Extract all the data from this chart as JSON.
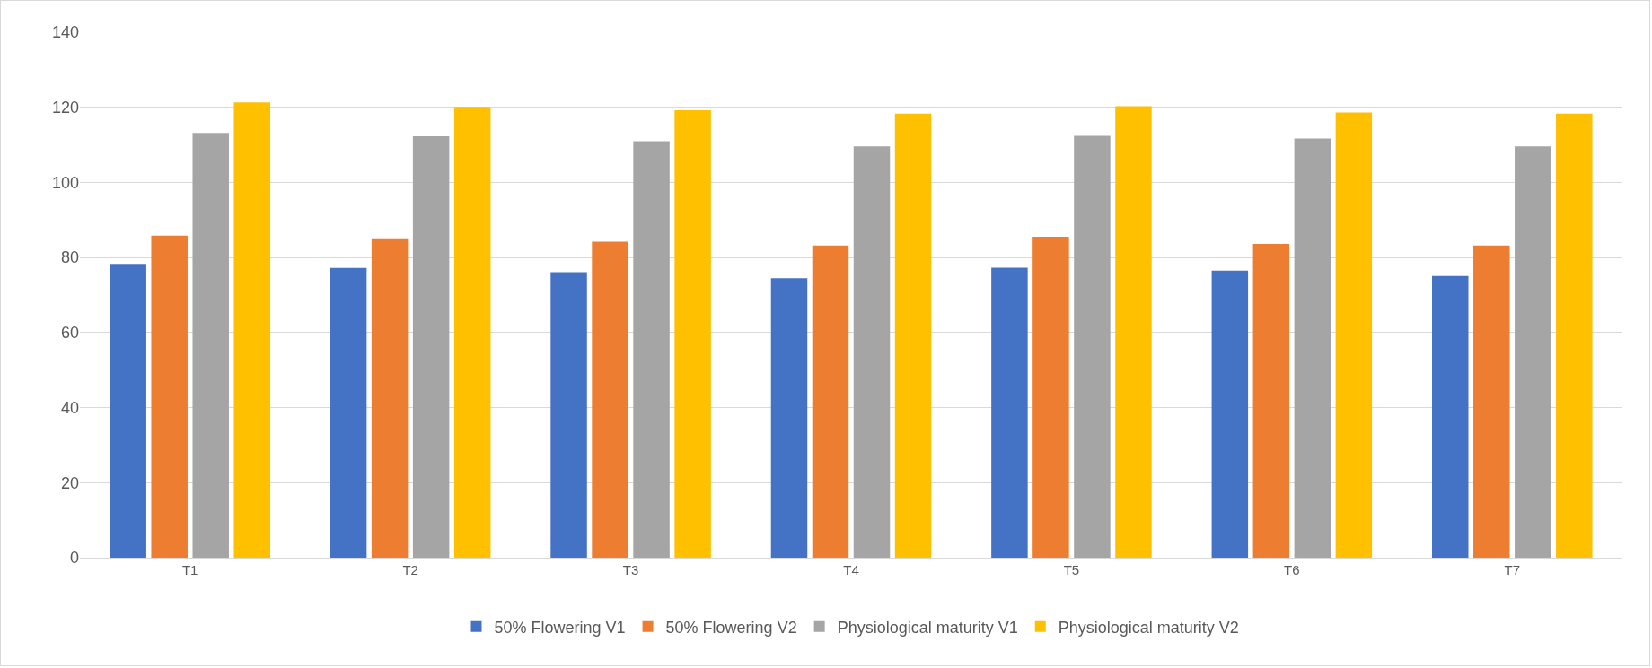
{
  "chart_data": {
    "type": "bar",
    "categories": [
      "T1",
      "T2",
      "T3",
      "T4",
      "T5",
      "T6",
      "T7"
    ],
    "series": [
      {
        "name": "50% Flowering V1",
        "color": "#4472c4",
        "values": [
          78.3,
          77.2,
          76.1,
          74.5,
          77.3,
          76.5,
          75.1
        ]
      },
      {
        "name": "50% Flowering V2",
        "color": "#ed7d31",
        "values": [
          85.8,
          85.1,
          84.2,
          83.2,
          85.5,
          83.6,
          83.2
        ]
      },
      {
        "name": "Physiological maturity V1",
        "color": "#a5a5a5",
        "values": [
          113.2,
          112.3,
          111.0,
          109.6,
          112.4,
          111.7,
          109.6
        ]
      },
      {
        "name": "Physiological maturity V2",
        "color": "#ffc000",
        "values": [
          121.3,
          120.1,
          119.2,
          118.3,
          120.3,
          118.6,
          118.3
        ]
      }
    ],
    "ylim": [
      0,
      140
    ],
    "yticks": [
      0,
      20,
      40,
      60,
      80,
      100,
      120,
      140
    ],
    "grid": "y",
    "legend": "bottom"
  }
}
